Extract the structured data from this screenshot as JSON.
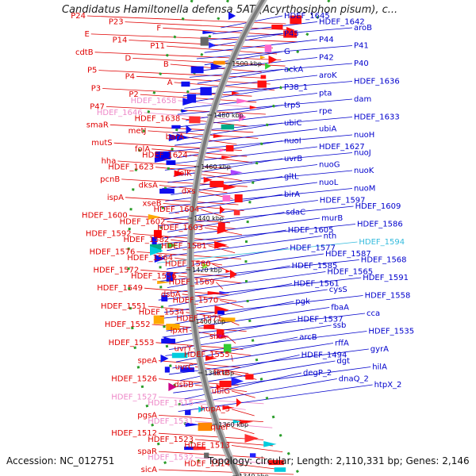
{
  "title": "Candidatus Hamiltonella defensa 5AT (Acyrthosiphon pisum), c...",
  "footer": {
    "accession": "Accession: NC_012751",
    "topology": "Topology: circular; Length: 2,110,331 bp; Genes: 2,146"
  },
  "colors": {
    "left_label": "#e00000",
    "left_pseudo": "#ee88c8",
    "right_label": "#0000cc",
    "right_highlight": "#33bbdd",
    "backbone": "#888888",
    "intergenic": "#2a9d2a"
  },
  "ticks": [
    "1500 kbp",
    "1480 kbp",
    "1460 kbp",
    "1440 kbp",
    "1420 kbp",
    "1400 kbp",
    "1380 kbp",
    "1360 kbp",
    "1340 kbp"
  ],
  "left_labels": [
    {
      "t": "P24",
      "c": "red"
    },
    {
      "t": "P23",
      "c": "red"
    },
    {
      "t": "F",
      "c": "red"
    },
    {
      "t": "E",
      "c": "red"
    },
    {
      "t": "P14",
      "c": "red"
    },
    {
      "t": "P11",
      "c": "red"
    },
    {
      "t": "cdtB",
      "c": "red"
    },
    {
      "t": "D",
      "c": "red"
    },
    {
      "t": "B",
      "c": "red"
    },
    {
      "t": "P5",
      "c": "red"
    },
    {
      "t": "P4",
      "c": "red"
    },
    {
      "t": "A",
      "c": "red"
    },
    {
      "t": "P3",
      "c": "red"
    },
    {
      "t": "P2",
      "c": "red"
    },
    {
      "t": "HDEF_1658",
      "c": "pink"
    },
    {
      "t": "P47",
      "c": "red"
    },
    {
      "t": "HDEF_1646",
      "c": "pink"
    },
    {
      "t": "HDEF_1638",
      "c": "red"
    },
    {
      "t": "smaR",
      "c": "red"
    },
    {
      "t": "metJ",
      "c": "red"
    },
    {
      "t": "barA",
      "c": "red"
    },
    {
      "t": "mutS",
      "c": "red"
    },
    {
      "t": "folA",
      "c": "red"
    },
    {
      "t": "HDEF_1624",
      "c": "red"
    },
    {
      "t": "hha",
      "c": "red"
    },
    {
      "t": "HDEF_1623",
      "c": "red"
    },
    {
      "t": "folK",
      "c": "red"
    },
    {
      "t": "pcnB",
      "c": "red"
    },
    {
      "t": "dksA",
      "c": "red"
    },
    {
      "t": "dxs",
      "c": "red"
    },
    {
      "t": "ispA",
      "c": "red"
    },
    {
      "t": "xseB",
      "c": "red"
    },
    {
      "t": "HDEF_1604",
      "c": "red"
    },
    {
      "t": "HDEF_1600",
      "c": "red"
    },
    {
      "t": "HDEF_1602",
      "c": "red"
    },
    {
      "t": "HDEF_1603",
      "c": "red"
    },
    {
      "t": "HDEF_1592",
      "c": "red"
    },
    {
      "t": "HDEF_1582",
      "c": "red"
    },
    {
      "t": "HDEF_1581",
      "c": "red"
    },
    {
      "t": "HDEF_1576",
      "c": "red"
    },
    {
      "t": "HDEF_1564",
      "c": "red"
    },
    {
      "t": "HDEF_1580",
      "c": "red"
    },
    {
      "t": "HDEF_1572",
      "c": "red"
    },
    {
      "t": "HDEF_1556",
      "c": "red"
    },
    {
      "t": "HDEF_1569",
      "c": "red"
    },
    {
      "t": "HDEF_1549",
      "c": "red"
    },
    {
      "t": "dsbA",
      "c": "red"
    },
    {
      "t": "HDEF_1570",
      "c": "red"
    },
    {
      "t": "HDEF_1551",
      "c": "red"
    },
    {
      "t": "HDEF_1534",
      "c": "red"
    },
    {
      "t": "HDEF_1571",
      "c": "red"
    },
    {
      "t": "HDEF_1552",
      "c": "red"
    },
    {
      "t": "lpxH",
      "c": "red"
    },
    {
      "t": "sixA",
      "c": "red"
    },
    {
      "t": "HDEF_1553",
      "c": "red"
    },
    {
      "t": "uvrY",
      "c": "red"
    },
    {
      "t": "HDEF_1555",
      "c": "red"
    },
    {
      "t": "speA",
      "c": "red"
    },
    {
      "t": "uvrC",
      "c": "red"
    },
    {
      "t": "tktB",
      "c": "red"
    },
    {
      "t": "HDEF_1526",
      "c": "red"
    },
    {
      "t": "dsbB",
      "c": "red"
    },
    {
      "t": "ubiG",
      "c": "red"
    },
    {
      "t": "HDEF_1527",
      "c": "pink"
    },
    {
      "t": "HDEF_1515",
      "c": "pink"
    },
    {
      "t": "hupA_3",
      "c": "red"
    },
    {
      "t": "pgsA",
      "c": "red"
    },
    {
      "t": "HDEF_1531",
      "c": "pink"
    },
    {
      "t": "queF",
      "c": "red"
    },
    {
      "t": "HDEF_1512",
      "c": "red"
    },
    {
      "t": "HDEF_1523",
      "c": "red"
    },
    {
      "t": "HDEF_1513",
      "c": "red"
    },
    {
      "t": "spaR",
      "c": "red"
    },
    {
      "t": "HDEF_1532",
      "c": "pink"
    },
    {
      "t": "HDEF_1514",
      "c": "red"
    },
    {
      "t": "sicA",
      "c": "red"
    }
  ],
  "right_labels": [
    {
      "t": "HDEF_1645",
      "c": "blue"
    },
    {
      "t": "HDEF_1642",
      "c": "blue"
    },
    {
      "t": "aroB",
      "c": "blue"
    },
    {
      "t": "P45",
      "c": "blue"
    },
    {
      "t": "P44",
      "c": "blue"
    },
    {
      "t": "P41",
      "c": "blue"
    },
    {
      "t": "G",
      "c": "blue"
    },
    {
      "t": "P42",
      "c": "blue"
    },
    {
      "t": "P40",
      "c": "blue"
    },
    {
      "t": "ackA",
      "c": "blue"
    },
    {
      "t": "aroK",
      "c": "blue"
    },
    {
      "t": "HDEF_1636",
      "c": "blue"
    },
    {
      "t": "P38_1",
      "c": "blue"
    },
    {
      "t": "pta",
      "c": "blue"
    },
    {
      "t": "dam",
      "c": "blue"
    },
    {
      "t": "trpS",
      "c": "blue"
    },
    {
      "t": "rpe",
      "c": "blue"
    },
    {
      "t": "HDEF_1633",
      "c": "blue"
    },
    {
      "t": "ubiC",
      "c": "blue"
    },
    {
      "t": "ubiA",
      "c": "blue"
    },
    {
      "t": "nuoH",
      "c": "blue"
    },
    {
      "t": "nuoI",
      "c": "blue"
    },
    {
      "t": "HDEF_1627",
      "c": "blue"
    },
    {
      "t": "nuoJ",
      "c": "blue"
    },
    {
      "t": "uvrB",
      "c": "blue"
    },
    {
      "t": "nuoG",
      "c": "blue"
    },
    {
      "t": "nuoK",
      "c": "blue"
    },
    {
      "t": "gltL",
      "c": "blue"
    },
    {
      "t": "nuoL",
      "c": "blue"
    },
    {
      "t": "nuoM",
      "c": "blue"
    },
    {
      "t": "birA",
      "c": "blue"
    },
    {
      "t": "HDEF_1597",
      "c": "blue"
    },
    {
      "t": "HDEF_1609",
      "c": "blue"
    },
    {
      "t": "sdaC",
      "c": "blue"
    },
    {
      "t": "murB",
      "c": "blue"
    },
    {
      "t": "HDEF_1586",
      "c": "blue"
    },
    {
      "t": "HDEF_1605",
      "c": "blue"
    },
    {
      "t": "nth",
      "c": "blue"
    },
    {
      "t": "HDEF_1594",
      "c": "cyan"
    },
    {
      "t": "HDEF_1577",
      "c": "blue"
    },
    {
      "t": "HDEF_1587",
      "c": "blue"
    },
    {
      "t": "HDEF_1568",
      "c": "blue"
    },
    {
      "t": "HDEF_1585",
      "c": "blue"
    },
    {
      "t": "HDEF_1565",
      "c": "blue"
    },
    {
      "t": "HDEF_1591",
      "c": "blue"
    },
    {
      "t": "HDEF_1561",
      "c": "blue"
    },
    {
      "t": "cysS",
      "c": "blue"
    },
    {
      "t": "HDEF_1558",
      "c": "blue"
    },
    {
      "t": "pgk",
      "c": "blue"
    },
    {
      "t": "fbaA",
      "c": "blue"
    },
    {
      "t": "cca",
      "c": "blue"
    },
    {
      "t": "HDEF_1537",
      "c": "blue"
    },
    {
      "t": "ssb",
      "c": "blue"
    },
    {
      "t": "HDEF_1535",
      "c": "blue"
    },
    {
      "t": "arcB",
      "c": "blue"
    },
    {
      "t": "rffA",
      "c": "blue"
    },
    {
      "t": "gyrA",
      "c": "blue"
    },
    {
      "t": "HDEF_1494",
      "c": "blue"
    },
    {
      "t": "dgt",
      "c": "blue"
    },
    {
      "t": "hilA",
      "c": "blue"
    },
    {
      "t": "degP_2",
      "c": "blue"
    },
    {
      "t": "dnaQ_2",
      "c": "blue"
    },
    {
      "t": "htpX_2",
      "c": "blue"
    }
  ]
}
